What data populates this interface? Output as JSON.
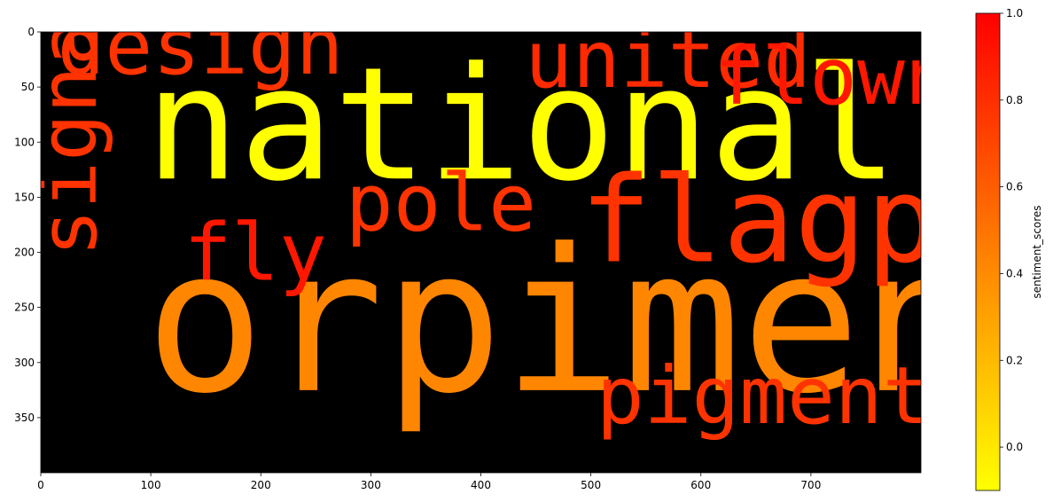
{
  "chart_data": {
    "type": "wordcloud",
    "image_extent": {
      "x": [
        0,
        800
      ],
      "y": [
        0,
        400
      ]
    },
    "x_ticks": [
      0,
      100,
      200,
      300,
      400,
      500,
      600,
      700
    ],
    "y_ticks": [
      0,
      50,
      100,
      150,
      200,
      250,
      300,
      350
    ],
    "background": "#000000",
    "words": [
      {
        "text": "national",
        "x": 95,
        "y": 133,
        "size": 142,
        "rotation": 0,
        "score": -0.1
      },
      {
        "text": "orpiment",
        "x": 95,
        "y": 325,
        "size": 180,
        "rotation": 0,
        "score": 0.42
      },
      {
        "text": "flagpole",
        "x": 490,
        "y": 208,
        "size": 108,
        "rotation": 0,
        "score": 0.78
      },
      {
        "text": "design",
        "x": 15,
        "y": 38,
        "size": 72,
        "rotation": 0,
        "score": 0.78
      },
      {
        "text": "united",
        "x": 440,
        "y": 50,
        "size": 72,
        "rotation": 0,
        "score": 0.82
      },
      {
        "text": "flown",
        "x": 612,
        "y": 65,
        "size": 72,
        "rotation": 0,
        "score": 0.9
      },
      {
        "text": "pole",
        "x": 277,
        "y": 180,
        "size": 72,
        "rotation": 0,
        "score": 0.78
      },
      {
        "text": "fly",
        "x": 130,
        "y": 225,
        "size": 72,
        "rotation": 0,
        "score": 0.9
      },
      {
        "text": "pigment",
        "x": 505,
        "y": 355,
        "size": 72,
        "rotation": 0,
        "score": 0.78
      },
      {
        "text": "signal",
        "x": 50,
        "y": 204,
        "size": 72,
        "rotation": -90,
        "score": 0.78
      }
    ],
    "colorbar": {
      "label": "sentiment_scores",
      "min": -0.1,
      "max": 1.0,
      "ticks": [
        0.0,
        0.2,
        0.4,
        0.6,
        0.8,
        1.0
      ],
      "tick_labels": [
        "0.0",
        "0.2",
        "0.4",
        "0.6",
        "0.8",
        "1.0"
      ],
      "colormap": [
        "#ffff00",
        "#ff0000"
      ]
    }
  }
}
